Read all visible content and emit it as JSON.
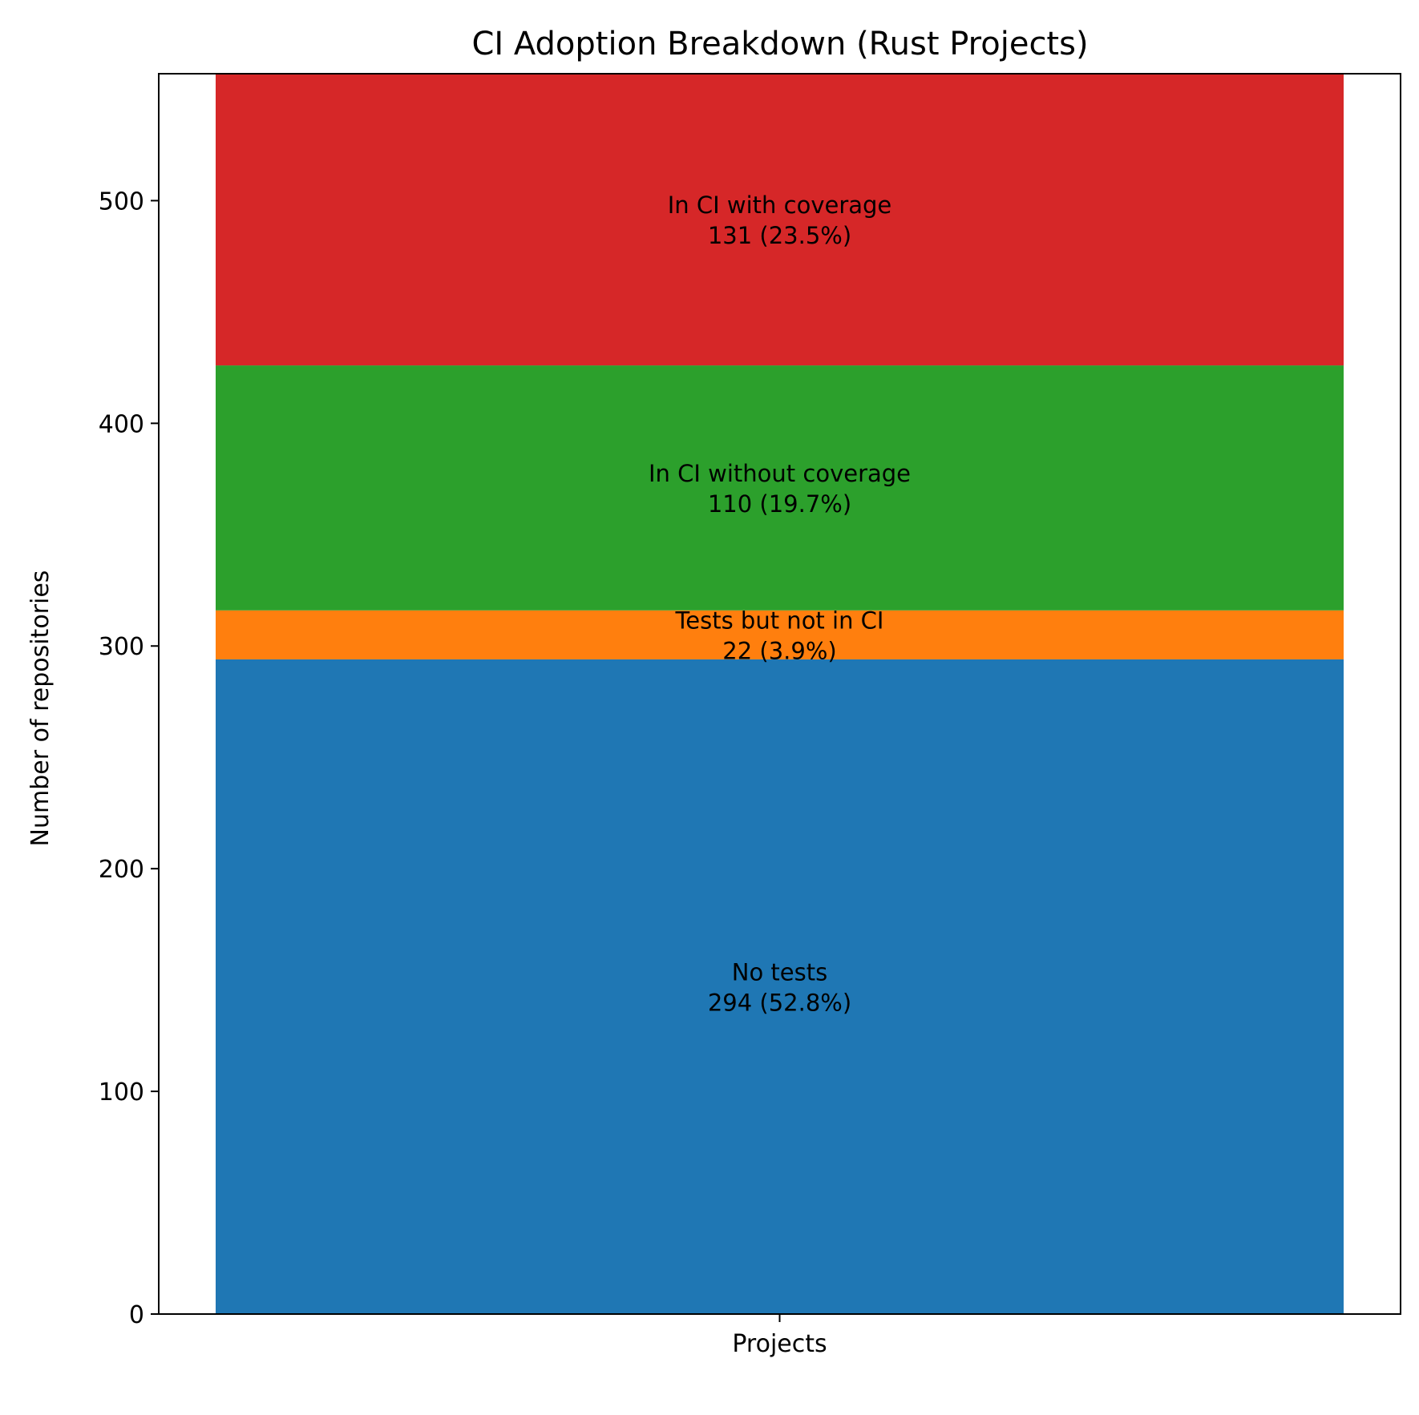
{
  "chart_data": {
    "type": "bar",
    "stacked": true,
    "title": "CI Adoption Breakdown (Rust Projects)",
    "xlabel": "",
    "ylabel": "Number of repositories",
    "categories": [
      "Projects"
    ],
    "ylim": [
      0,
      557
    ],
    "yticks": [
      0,
      100,
      200,
      300,
      400,
      500
    ],
    "grid": false,
    "series": [
      {
        "name": "No tests",
        "values": [
          294
        ],
        "label": "294 (52.8%)",
        "color": "#1f77b4"
      },
      {
        "name": "Tests but not in CI",
        "values": [
          22
        ],
        "label": "22 (3.9%)",
        "color": "#ff7f0e"
      },
      {
        "name": "In CI without coverage",
        "values": [
          110
        ],
        "label": "110 (19.7%)",
        "color": "#2ca02c"
      },
      {
        "name": "In CI with coverage",
        "values": [
          131
        ],
        "label": "131 (23.5%)",
        "color": "#d62728"
      }
    ]
  }
}
